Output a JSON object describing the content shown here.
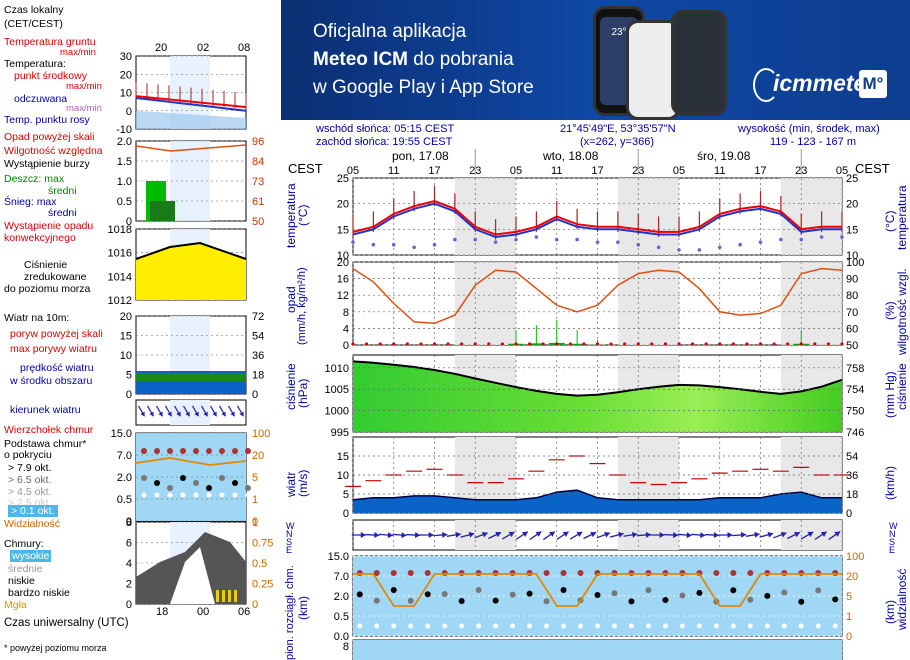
{
  "banner": {
    "line1": "Oficjalna aplikacja",
    "line2_bold": "Meteo ICM",
    "line2_rest": " do pobrania",
    "line3": "w Google Play i App Store",
    "logo": "icmmeteo",
    "logo_badge": "M°",
    "phone_temp": "23°"
  },
  "info": {
    "sunrise": "wschód słońca: 05:15 CEST",
    "sunset": "zachód słońca: 19:55 CEST",
    "coords": "21°45'49\"E, 53°35'57\"N",
    "grid": "(x=262,  y=366)",
    "height_label": "wysokość (min, środek, max)",
    "height_values": "119 - 123 - 167 m"
  },
  "legend": {
    "local_time": "Czas lokalny",
    "local_time2": "(CET/CEST)",
    "ground_temp": "Temperatura gruntu",
    "ground_temp2": "max/min",
    "temp": "Temperatura:",
    "mid_point": "punkt środkowy",
    "max_min": "max/min",
    "feels": "odczuwana",
    "feels_maxmin": "max/min",
    "dew": "Temp. punktu rosy",
    "precip_above": "Opad powyżej skali",
    "humidity": "Wilgotność względna",
    "storm": "Wystąpienie burzy",
    "rain_max": "Deszcz: max",
    "rain_mid": "średni",
    "snow_max": "Śnieg:  max",
    "snow_mid": "średni",
    "conv": "Wystąpienie opadu",
    "conv2": "konwekcyjnego",
    "pressure1": "Ciśnienie",
    "pressure2": "zredukowane",
    "pressure3": "do poziomu morza",
    "wind10": "Wiatr na 10m:",
    "gust_above": "poryw powyżej skali",
    "max_gust": "max porywy wiatru",
    "wind_speed": "prędkość wiatru",
    "wind_area": "w środku obszaru",
    "wind_dir": "kierunek wiatru",
    "cloud_top": "Wierzchołek chmur",
    "cloud_base": "Podstawa chmur*",
    "cloud_base2": "o pokryciu",
    "okt79": "> 7.9 okt.",
    "okt65": "> 6.5 okt.",
    "okt45": "> 4.5 okt.",
    "okt25": "> 2.5 okt.",
    "okt01": "> 0.1 okt.",
    "visibility": "Widzialność",
    "clouds": "Chmury:",
    "high": "wysokie",
    "mid": "średnie",
    "low": "niskie",
    "very_low": "bardzo niskie",
    "fog": "Mgła",
    "utc": "Czas uniwersalny (UTC)",
    "footnote": "* powyżej poziomu morza",
    "top_hours": [
      "20",
      "02",
      "08"
    ],
    "bottom_hours": [
      "18",
      "00",
      "06"
    ]
  },
  "main": {
    "cest": "CEST",
    "days": [
      "pon, 17.08",
      "wto, 18.08",
      "śro, 19.08"
    ],
    "hours": [
      "05",
      "11",
      "17",
      "23",
      "05",
      "11",
      "17",
      "23",
      "05",
      "11",
      "17",
      "23",
      "05"
    ],
    "temp_axis": "temperatura",
    "temp_unit": "(°C)",
    "precip_axis": "opad",
    "precip_unit": "(mm/h, kg/m²/h)",
    "hum_axis": "wilgotność wzgl.",
    "hum_unit": "(%)",
    "press_axis": "ciśnienie",
    "press_unit": "(hPa)",
    "press_unit_r": "(mm Hg)",
    "wind_axis": "wiatr",
    "wind_unit": "(m/s)",
    "wind_unit_r": "(km/h)",
    "cloud_axis": "pion. rozciągł. chm.",
    "cloud_unit": "(km)",
    "vis_axis": "widzialność",
    "vis_unit": "(km)",
    "wind_rose": "W N S E"
  },
  "chart_data": [
    {
      "type": "line",
      "title": "temperatura",
      "ylabel": "(°C)",
      "ylim": [
        10,
        25
      ],
      "yticks": [
        10,
        15,
        20,
        25
      ],
      "x_hours_cest": [
        5,
        8,
        11,
        14,
        17,
        20,
        23,
        26,
        29,
        32,
        35,
        38,
        41,
        44,
        47,
        50,
        53,
        56,
        59,
        62,
        65,
        68,
        71,
        74,
        77
      ],
      "series": [
        {
          "name": "punkt środkowy",
          "values": [
            14.5,
            15.5,
            18,
            19.5,
            20.5,
            19,
            15.5,
            14,
            14.5,
            15.5,
            17.5,
            16,
            15.5,
            15.5,
            15,
            14.5,
            14.5,
            15.5,
            18,
            19,
            19.5,
            18.5,
            15,
            15.5,
            15.5
          ]
        },
        {
          "name": "odczuwana",
          "values": [
            14,
            15,
            17.5,
            19,
            20,
            18.5,
            15,
            13.5,
            14,
            15,
            17,
            15.5,
            15,
            15,
            14.5,
            14,
            14,
            15,
            17.5,
            18.5,
            19,
            18,
            14.5,
            15,
            15
          ]
        },
        {
          "name": "Temp. punktu rosy",
          "values": [
            12.5,
            12,
            12,
            11.5,
            12,
            13,
            13,
            12.5,
            13,
            13.5,
            13,
            13,
            12.5,
            12.5,
            12,
            11.5,
            11,
            11,
            11.5,
            12,
            12.5,
            13,
            13,
            13.5,
            13.5
          ]
        }
      ]
    },
    {
      "type": "line",
      "title": "opad / wilgotność wzgl.",
      "ylim": [
        0,
        20
      ],
      "yticks": [
        0,
        4,
        8,
        12,
        16,
        20
      ],
      "y2ticks": [
        50,
        60,
        70,
        80,
        90,
        100
      ],
      "x_hours_cest": [
        5,
        8,
        11,
        14,
        17,
        20,
        23,
        26,
        29,
        32,
        35,
        38,
        41,
        44,
        47,
        50,
        53,
        56,
        59,
        62,
        65,
        68,
        71,
        74,
        77
      ],
      "series": [
        {
          "name": "wilgotność",
          "values": [
            96,
            88,
            75,
            64,
            63,
            68,
            86,
            95,
            94,
            84,
            74,
            70,
            74,
            86,
            93,
            95,
            94,
            84,
            70,
            68,
            69,
            74,
            93,
            96,
            95
          ]
        },
        {
          "name": "opad",
          "values": [
            0,
            0,
            0,
            0,
            0,
            0,
            0,
            0,
            0.3,
            0.4,
            0.5,
            0.3,
            0.1,
            0,
            0,
            0,
            0,
            0,
            0,
            0,
            0,
            0,
            0.3,
            0,
            0
          ]
        }
      ]
    },
    {
      "type": "area",
      "title": "ciśnienie",
      "ylabel": "(hPa)",
      "ylim": [
        995,
        1013
      ],
      "yticks": [
        995,
        1000,
        1005,
        1010
      ],
      "y2ticks": [
        746,
        750,
        754,
        758
      ],
      "x_hours_cest": [
        5,
        8,
        11,
        14,
        17,
        20,
        23,
        26,
        29,
        32,
        35,
        38,
        41,
        44,
        47,
        50,
        53,
        56,
        59,
        62,
        65,
        68,
        71,
        74,
        77
      ],
      "series": [
        {
          "name": "ciśnienie",
          "values": [
            1011.5,
            1011.2,
            1010.7,
            1010.2,
            1009.5,
            1008.6,
            1007.5,
            1006.5,
            1005.5,
            1004.6,
            1003.9,
            1003.5,
            1003.7,
            1004.3,
            1005,
            1005.6,
            1006,
            1005.9,
            1005.5,
            1005,
            1004.4,
            1003.9,
            1004.5,
            1005.6,
            1007.2
          ]
        }
      ]
    },
    {
      "type": "line",
      "title": "wiatr",
      "ylabel": "(m/s)",
      "ylim": [
        0,
        20
      ],
      "yticks": [
        0,
        5,
        10,
        15
      ],
      "y2ticks": [
        0,
        18,
        36,
        54
      ],
      "x_hours_cest": [
        5,
        8,
        11,
        14,
        17,
        20,
        23,
        26,
        29,
        32,
        35,
        38,
        41,
        44,
        47,
        50,
        53,
        56,
        59,
        62,
        65,
        68,
        71,
        74,
        77
      ],
      "series": [
        {
          "name": "prędkość wiatru",
          "values": [
            3.5,
            4,
            4,
            4.5,
            4.5,
            4,
            3.5,
            3.5,
            3.5,
            4,
            5.5,
            6,
            4,
            3.5,
            3.5,
            3.5,
            3.5,
            3.5,
            4,
            4,
            4,
            5,
            5.5,
            4,
            4
          ]
        },
        {
          "name": "max porywy wiatru",
          "values": [
            7,
            8.5,
            10,
            11,
            11.5,
            10,
            8,
            8,
            9,
            11,
            14,
            15,
            13,
            10,
            8,
            7.5,
            8,
            9,
            10.5,
            11,
            11.5,
            11,
            12,
            10,
            10
          ]
        }
      ]
    },
    {
      "type": "line",
      "title": "pion. rozciągł. chm. / widzialność",
      "ylabel": "(km)",
      "yticks": [
        0,
        0.5,
        2.0,
        7.0,
        15.0
      ],
      "y2ticks": [
        0,
        1,
        5,
        20,
        100
      ]
    }
  ]
}
